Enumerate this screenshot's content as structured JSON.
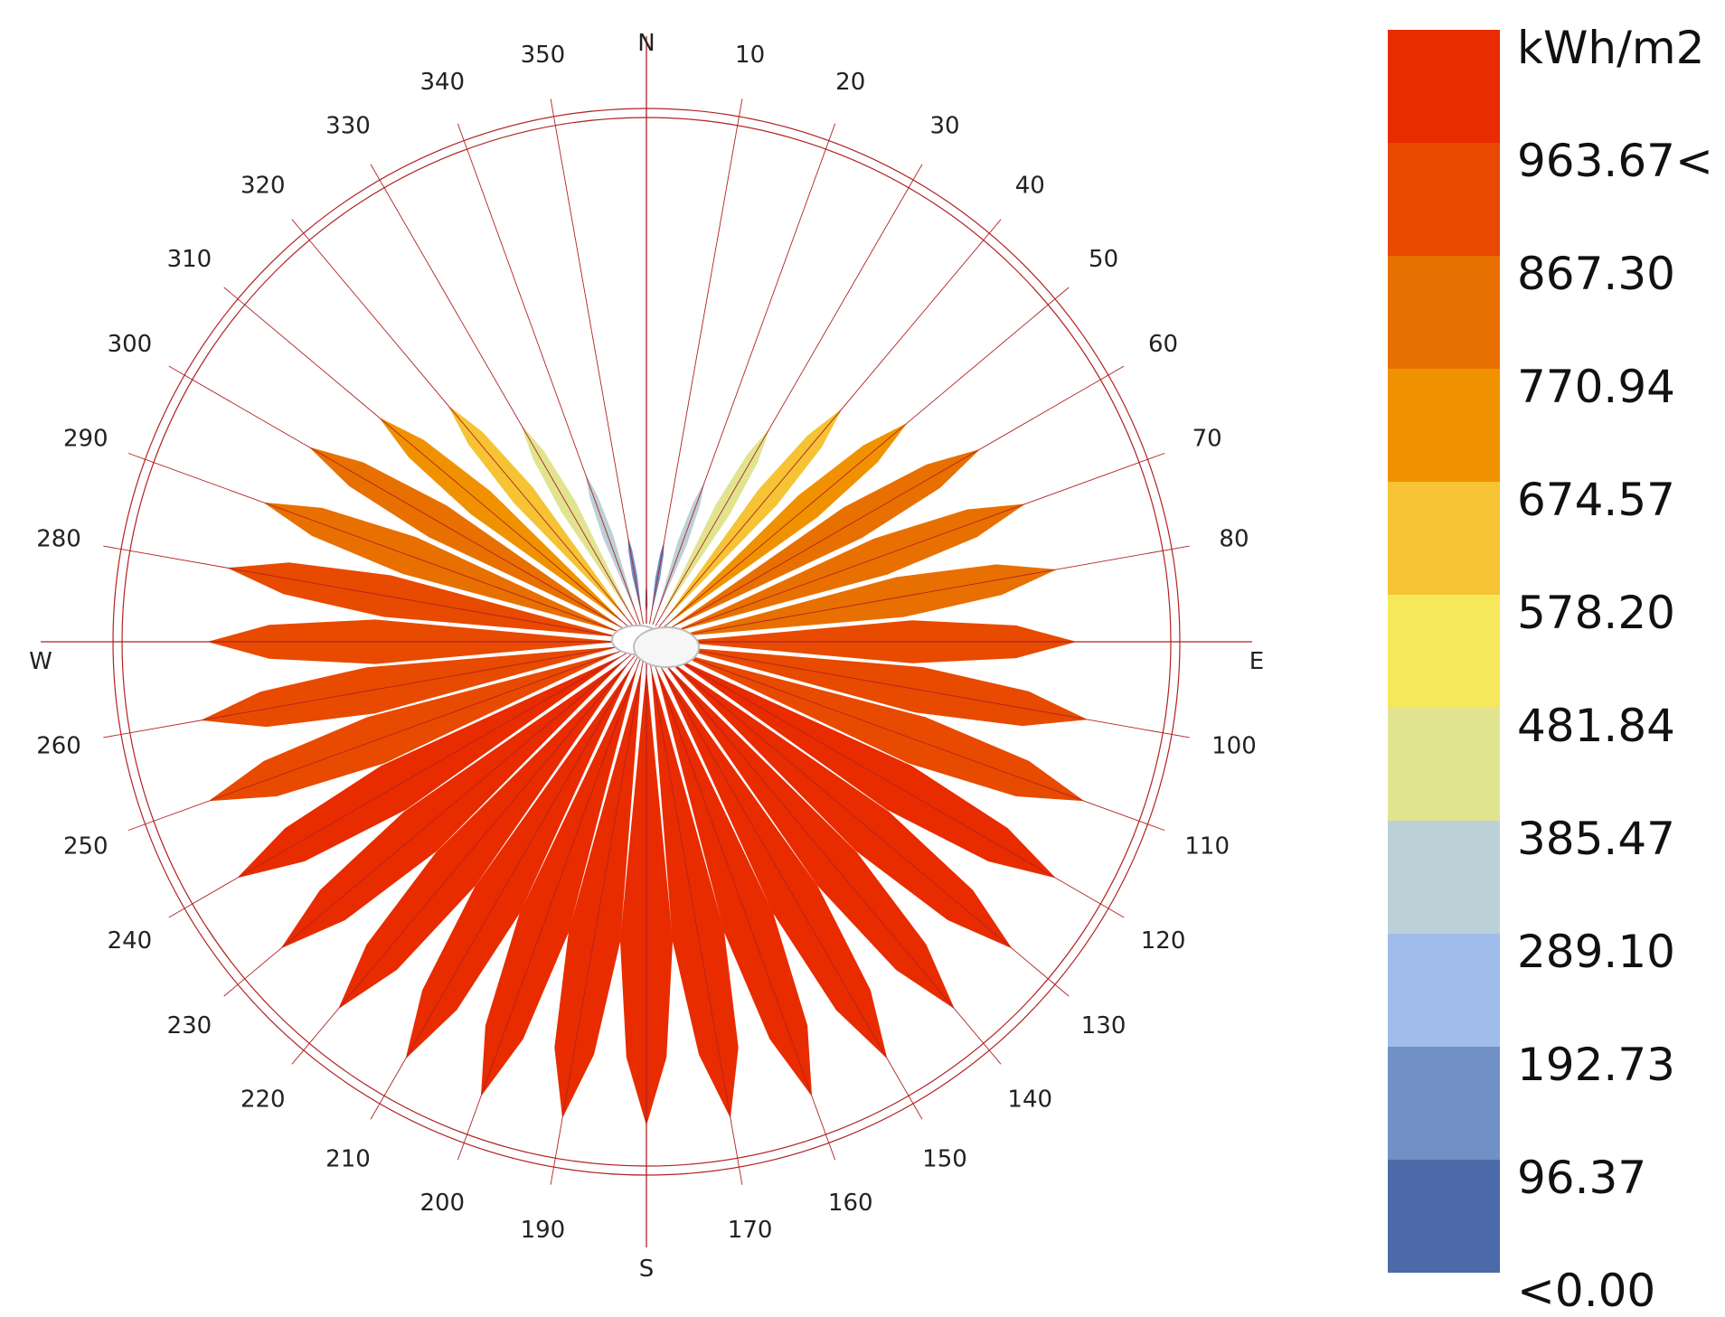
{
  "chart_data": {
    "type": "radiation-rose",
    "unit": "kWh/m2",
    "cardinals": [
      "N",
      "E",
      "S",
      "W"
    ],
    "directions": [
      0,
      10,
      20,
      30,
      40,
      50,
      60,
      70,
      80,
      90,
      100,
      110,
      120,
      130,
      140,
      150,
      160,
      170,
      180,
      190,
      200,
      210,
      220,
      230,
      240,
      250,
      260,
      270,
      280,
      290,
      300,
      310,
      320,
      330,
      340,
      350
    ],
    "direction_labels": [
      "10",
      "20",
      "30",
      "40",
      "50",
      "60",
      "70",
      "80",
      "100",
      "110",
      "120",
      "130",
      "140",
      "150",
      "160",
      "170",
      "190",
      "200",
      "210",
      "220",
      "230",
      "240",
      "250",
      "260",
      "280",
      "290",
      "300",
      "310",
      "320",
      "330",
      "340",
      "350"
    ],
    "values": [
      50,
      150,
      300,
      470,
      600,
      680,
      780,
      820,
      850,
      880,
      920,
      960,
      975,
      985,
      990,
      995,
      1000,
      1000,
      1000,
      1000,
      1000,
      995,
      990,
      985,
      975,
      960,
      930,
      900,
      870,
      830,
      790,
      700,
      610,
      480,
      320,
      160
    ],
    "max_value": 1050,
    "legend": {
      "unit": "kWh/m2",
      "labels": [
        "963.67<",
        "867.30",
        "770.94",
        "674.57",
        "578.20",
        "481.84",
        "385.47",
        "289.10",
        "192.73",
        "96.37",
        "<0.00"
      ],
      "colors": [
        "#e82c00",
        "#e84a00",
        "#e87000",
        "#f09200",
        "#f5c334",
        "#f5e85a",
        "#e1e48f",
        "#bcd0d8",
        "#a0bcea",
        "#7090c6",
        "#4c6aa8"
      ],
      "thresholds": [
        0,
        96.37,
        192.73,
        289.1,
        385.47,
        481.84,
        578.2,
        674.57,
        770.94,
        867.3,
        963.67
      ]
    },
    "colors": {
      "line": "#b22222",
      "label": "#222222"
    }
  }
}
